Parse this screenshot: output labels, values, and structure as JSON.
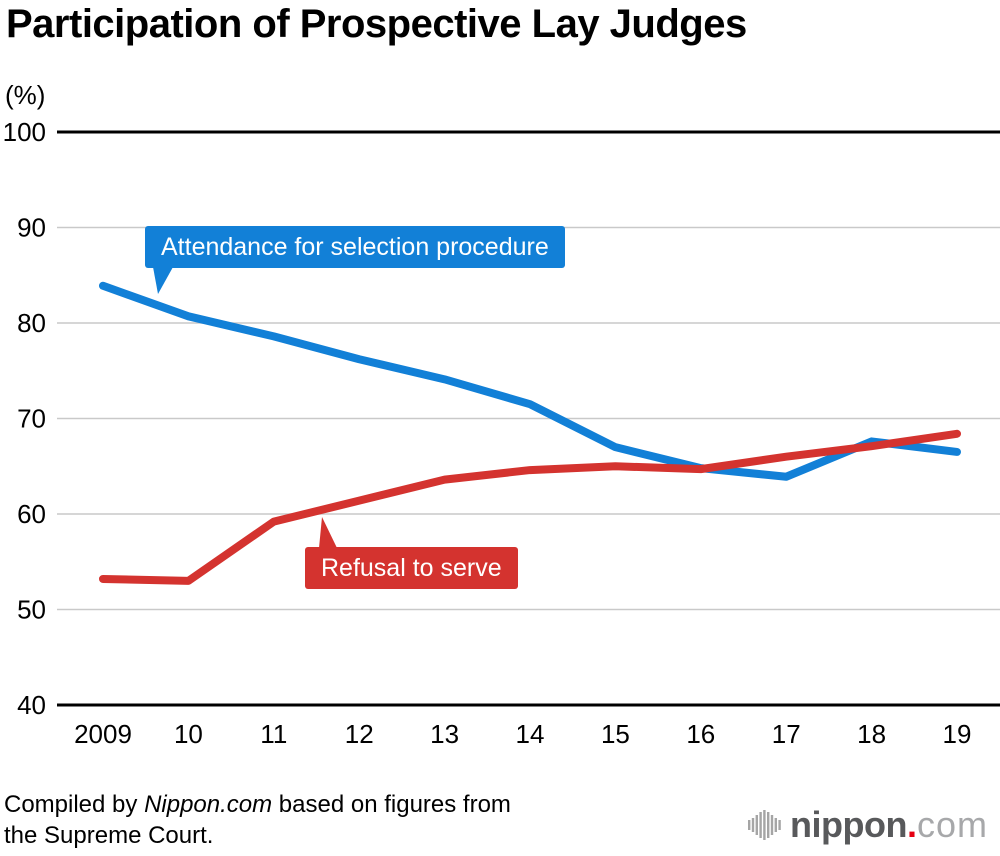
{
  "header": {
    "title": "Participation of Prospective Lay Judges"
  },
  "chart_data": {
    "type": "line",
    "title": "Participation of Prospective Lay Judges",
    "unit_label": "(%)",
    "xlabel": "",
    "ylabel": "(%)",
    "ylim": [
      40,
      100
    ],
    "y_ticks": [
      40,
      50,
      60,
      70,
      80,
      90,
      100
    ],
    "grid": true,
    "x_tick_labels": [
      "2009",
      "10",
      "11",
      "12",
      "13",
      "14",
      "15",
      "16",
      "17",
      "18",
      "19"
    ],
    "years": [
      2009,
      2010,
      2011,
      2012,
      2013,
      2014,
      2015,
      2016,
      2017,
      2018,
      2019
    ],
    "series": [
      {
        "name": "Attendance for selection procedure",
        "color": "#1280D7",
        "values": [
          83.9,
          80.7,
          78.6,
          76.2,
          74.1,
          71.5,
          67.0,
          64.8,
          63.9,
          67.6,
          66.5
        ]
      },
      {
        "name": "Refusal to serve",
        "color": "#D4332F",
        "values": [
          53.2,
          53.0,
          59.2,
          61.4,
          63.6,
          64.6,
          65.0,
          64.7,
          66.0,
          67.1,
          68.4
        ]
      }
    ],
    "axis_colors": {
      "gridline": "#c9c9c9",
      "axis_line": "#000000"
    },
    "legend_position": "callouts-on-plot"
  },
  "footer": {
    "line1_prefix": "Compiled by ",
    "line1_brand": "Nippon.com",
    "line1_suffix": " based on figures from",
    "line2": "the Supreme Court.",
    "logo": {
      "icon": "waveform-bars-icon",
      "name": "nippon",
      "dot": ".",
      "tld": "com",
      "name_color": "#58595B",
      "dot_color": "#E60012",
      "tld_color": "#A7A8AA"
    }
  }
}
